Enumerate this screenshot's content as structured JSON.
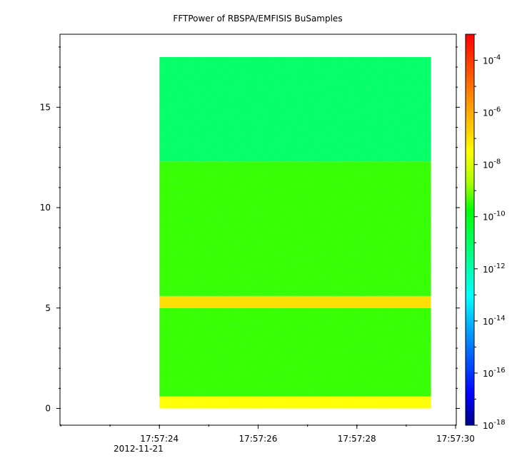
{
  "chart_data": {
    "type": "heatmap",
    "title": "FFTPower of RBSPA/EMFISIS  BuSamples",
    "x_axis": {
      "range": [
        "2012-11-21 17:57:22",
        "2012-11-21 17:57:30"
      ],
      "major_ticks": [
        "17:57:24",
        "17:57:26",
        "17:57:28",
        "17:57:30"
      ],
      "date_label": "2012-11-21"
    },
    "y_axis": {
      "range": [
        -0.8,
        18.6
      ],
      "major_ticks": [
        "0",
        "5",
        "10",
        "15"
      ]
    },
    "colorbar": {
      "scale": "log",
      "range": [
        1e-18,
        0.001
      ],
      "tick_bases": [
        "10",
        "10",
        "10",
        "10",
        "10",
        "10",
        "10",
        "10"
      ],
      "tick_exponents": [
        "-4",
        "-6",
        "-8",
        "-10",
        "-12",
        "-14",
        "-16",
        "-18"
      ],
      "colormap": [
        "#00008b",
        "#0000ff",
        "#00aaff",
        "#00ffff",
        "#00ff99",
        "#00ff00",
        "#aaff00",
        "#ffff00",
        "#ffaa00",
        "#ff5500",
        "#ff0000"
      ]
    },
    "data_extent": {
      "x": [
        "2012-11-21 17:57:24.0",
        "2012-11-21 17:57:29.5"
      ],
      "y": [
        0,
        17.5
      ]
    },
    "power_bands": [
      {
        "y_range": [
          0,
          0.6
        ],
        "level": "1e-9",
        "color": "#ffff00"
      },
      {
        "y_range": [
          0.6,
          5
        ],
        "level": "1e-10",
        "color": "#33ff00"
      },
      {
        "y_range": [
          5,
          5.6
        ],
        "level": "1e-8",
        "color": "#ffdd00"
      },
      {
        "y_range": [
          5.6,
          12.3
        ],
        "level": "1e-10",
        "color": "#33ff00"
      },
      {
        "y_range": [
          12.3,
          17.5
        ],
        "level": "1e-12",
        "color": "#00ff66"
      }
    ]
  }
}
